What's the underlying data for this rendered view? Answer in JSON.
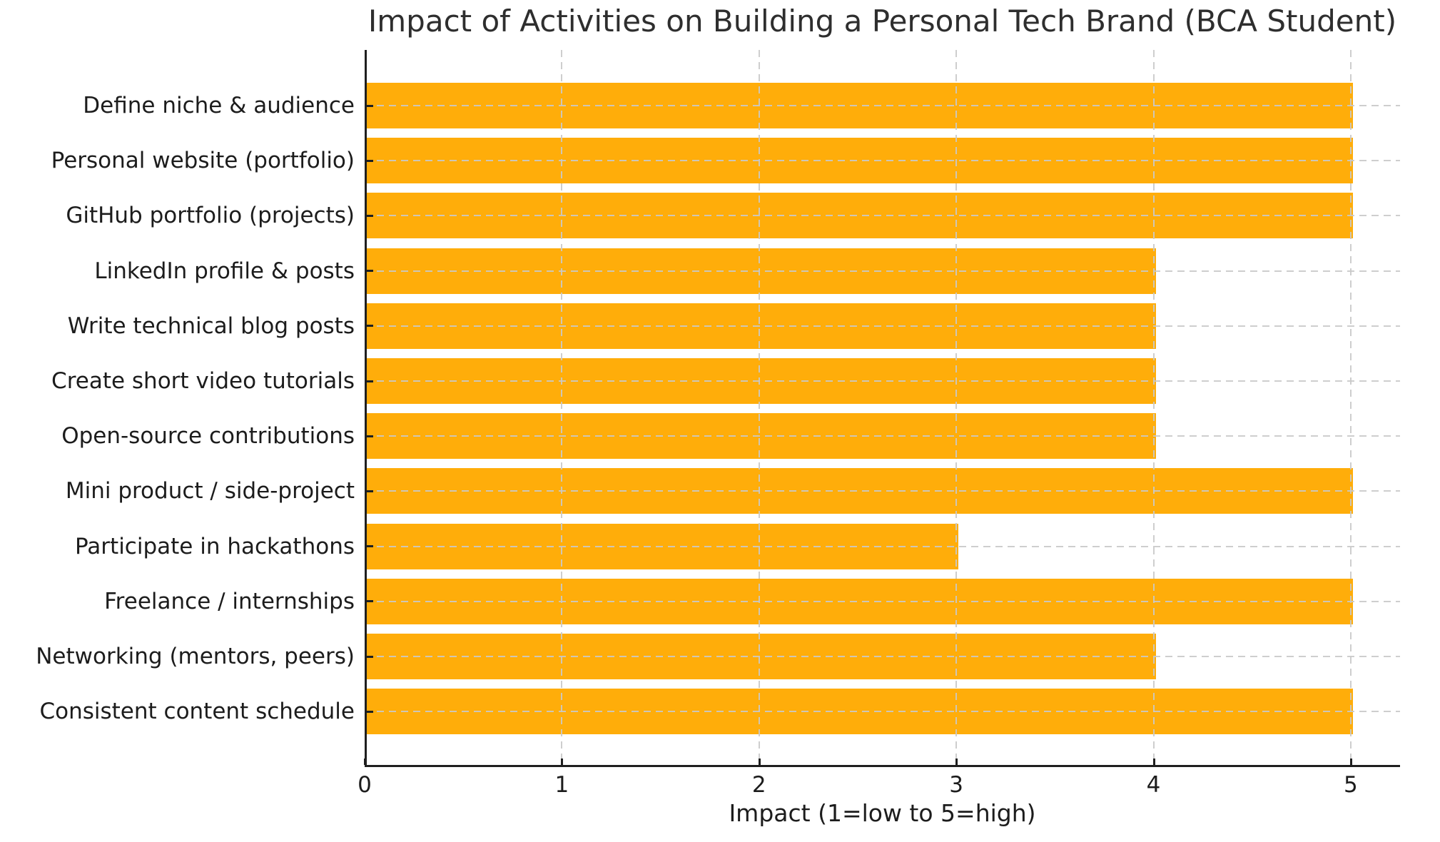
{
  "chart_data": {
    "type": "bar",
    "orientation": "horizontal",
    "title": "Impact of Activities on Building a Personal Tech Brand (BCA Student)",
    "xlabel": "Impact (1=low to 5=high)",
    "ylabel": "",
    "categories": [
      "Define niche & audience",
      "Personal website (portfolio)",
      "GitHub portfolio (projects)",
      "LinkedIn profile & posts",
      "Write technical blog posts",
      "Create short video tutorials",
      "Open-source contributions",
      "Mini product / side-project",
      "Participate in hackathons",
      "Freelance / internships",
      "Networking (mentors, peers)",
      "Consistent content schedule"
    ],
    "values": [
      5,
      5,
      5,
      4,
      4,
      4,
      4,
      5,
      3,
      5,
      4,
      5
    ],
    "xticks": [
      "0",
      "1",
      "2",
      "3",
      "4",
      "5"
    ],
    "xlim": [
      0,
      5.25
    ],
    "bar_color": "#FFAD0A",
    "grid": {
      "axes": "both",
      "style": "dashed",
      "color": "#C9C9C9",
      "above_bars": true
    },
    "axis_color": "#1F1F1F",
    "background": "#FFFFFF",
    "legend": "none"
  }
}
